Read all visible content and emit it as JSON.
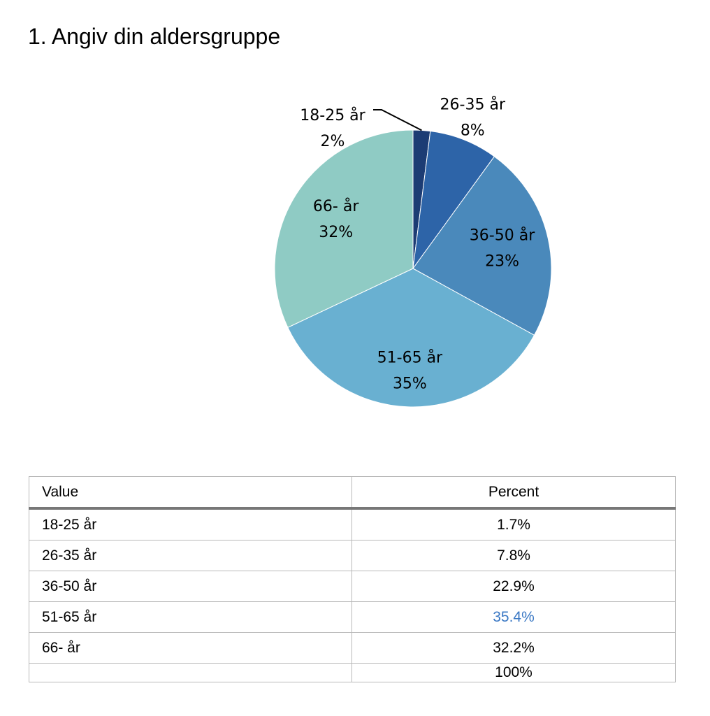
{
  "chart_data": {
    "type": "pie",
    "title": "1. Angiv din aldersgruppe",
    "categories": [
      "18-25 år",
      "26-35 år",
      "36-50 år",
      "51-65 år",
      "66- år"
    ],
    "values": [
      2,
      8,
      23,
      35,
      32
    ],
    "value_labels": [
      "2%",
      "8%",
      "23%",
      "35%",
      "32%"
    ],
    "colors": [
      "#1c3c74",
      "#2d64a8",
      "#4a89bb",
      "#69b0d1",
      "#8fcbc4"
    ]
  },
  "table": {
    "headers": [
      "Value",
      "Percent"
    ],
    "rows": [
      [
        "18-25 år",
        "1.7%"
      ],
      [
        "26-35 år",
        "7.8%"
      ],
      [
        "36-50 år",
        "22.9%"
      ],
      [
        "51-65 år",
        "35.4%"
      ],
      [
        "66- år",
        "32.2%"
      ]
    ],
    "total": "100%",
    "highlight": {
      "row": 3,
      "color": "#3a78c4"
    }
  }
}
